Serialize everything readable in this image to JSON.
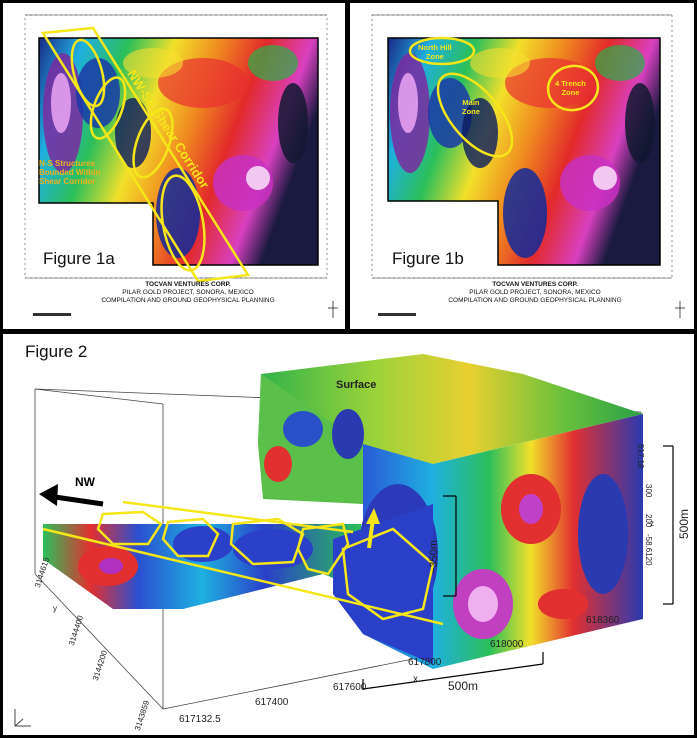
{
  "figure_1a": {
    "label": "Figure 1a",
    "corridor_label": "NW-SE Shear Corridor",
    "structures_label_1": "N-S Structures",
    "structures_label_2": "Bounded Within",
    "structures_label_3": "Shear Corridor"
  },
  "figure_1b": {
    "label": "Figure 1b",
    "zone_north_hill_1": "North Hill",
    "zone_north_hill_2": "Zone",
    "zone_main_1": "Main",
    "zone_main_2": "Zone",
    "zone_trench_1": "4 Trench",
    "zone_trench_2": "Zone"
  },
  "caption": {
    "line1": "TOCVAN VENTURES CORP.",
    "line2": "PILAR GOLD PROJECT, SONORA, MEXICO",
    "line3": "COMPILATION AND GROUND GEOPHYSICAL PLANNING"
  },
  "figure_2": {
    "label": "Figure 2",
    "surface_label": "Surface",
    "nw_label": "NW",
    "depth_label": "~350m",
    "scale_vertical": "500m",
    "scale_horizontal": "500m",
    "x_axis_name": "x",
    "y_axis_name": "y",
    "z_axis_name": "z",
    "x_ticks": [
      "617132.5",
      "617400",
      "617600",
      "617800",
      "618000",
      "618360"
    ],
    "y_ticks": [
      "3143859",
      "3144200",
      "3144400",
      "3144615"
    ],
    "z_ticks": [
      "517.18",
      "300",
      "200",
      "-58.6120"
    ],
    "colors": {
      "annotation": "#f5e61a",
      "frame": "#000000",
      "arrow": "#000000"
    }
  }
}
